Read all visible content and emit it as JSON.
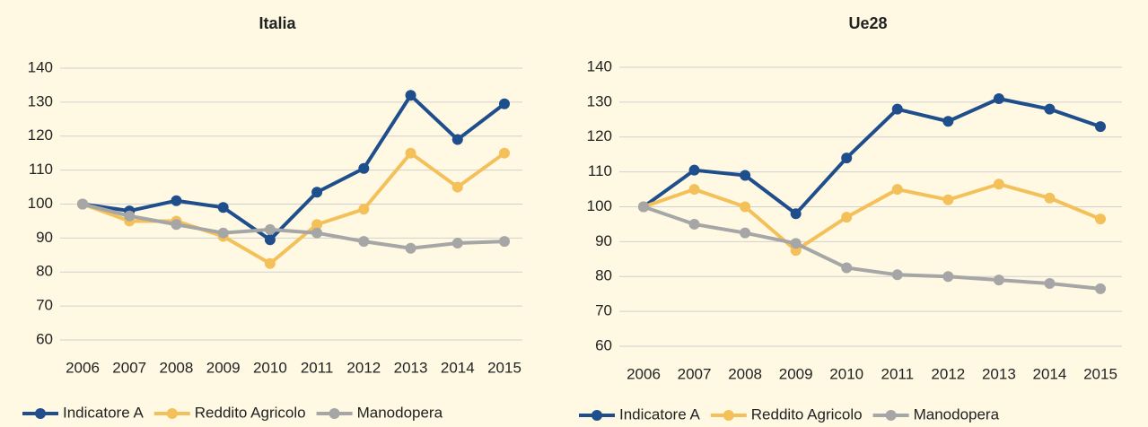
{
  "chart_data": [
    {
      "type": "line",
      "title": "Italia",
      "categories": [
        "2006",
        "2007",
        "2008",
        "2009",
        "2010",
        "2011",
        "2012",
        "2013",
        "2014",
        "2015"
      ],
      "series": [
        {
          "name": "Indicatore A",
          "color": "#1f4e8c",
          "values": [
            100,
            98,
            101,
            99,
            89.5,
            103.5,
            110.5,
            132,
            119,
            129.5
          ]
        },
        {
          "name": "Reddito Agricolo",
          "color": "#f4c05a",
          "values": [
            100,
            95,
            95,
            90.5,
            82.5,
            94,
            98.5,
            115,
            105,
            115
          ]
        },
        {
          "name": "Manodopera",
          "color": "#a6a6a6",
          "values": [
            100,
            96.5,
            94,
            91.5,
            92.5,
            91.5,
            89,
            87,
            88.5,
            89
          ]
        }
      ],
      "ylim": [
        60,
        140
      ],
      "yticks": [
        60,
        70,
        80,
        90,
        100,
        110,
        120,
        130,
        140
      ],
      "grid": true,
      "legend": "bottom"
    },
    {
      "type": "line",
      "title": "Ue28",
      "categories": [
        "2006",
        "2007",
        "2008",
        "2009",
        "2010",
        "2011",
        "2012",
        "2013",
        "2014",
        "2015"
      ],
      "series": [
        {
          "name": "Indicatore A",
          "color": "#1f4e8c",
          "values": [
            100,
            110.5,
            109,
            98,
            114,
            128,
            124.5,
            131,
            128,
            123
          ]
        },
        {
          "name": "Reddito Agricolo",
          "color": "#f4c05a",
          "values": [
            100,
            105,
            100,
            87.5,
            97,
            105,
            102,
            106.5,
            102.5,
            96.5
          ]
        },
        {
          "name": "Manodopera",
          "color": "#a6a6a6",
          "values": [
            100,
            95,
            92.5,
            89.5,
            82.5,
            80.5,
            80,
            79,
            78,
            76.5
          ]
        }
      ],
      "ylim": [
        60,
        140
      ],
      "yticks": [
        60,
        70,
        80,
        90,
        100,
        110,
        120,
        130,
        140
      ],
      "grid": true,
      "legend": "bottom"
    }
  ]
}
